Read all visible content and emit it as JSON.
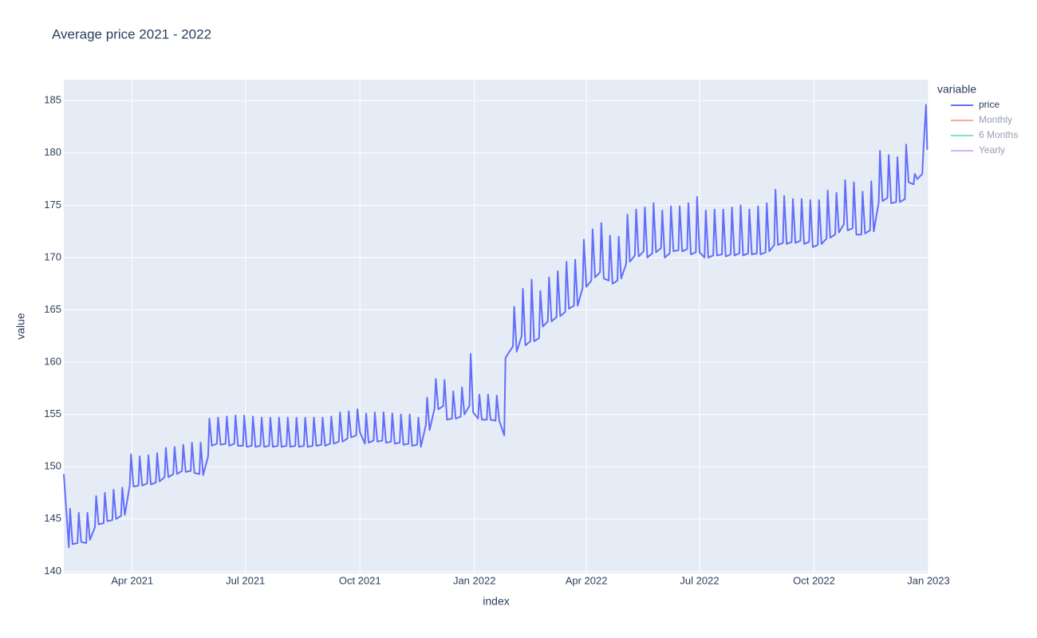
{
  "chart_data": {
    "type": "line",
    "title": "Average price 2021 - 2022",
    "x_label": "index",
    "y_label": "value",
    "legend_title": "variable",
    "grid": true,
    "legend_position": "right",
    "xlim": [
      "2021-02-05",
      "2023-01-01"
    ],
    "xticks": [
      {
        "value": "2021-04-01",
        "label": "Apr 2021"
      },
      {
        "value": "2021-07-01",
        "label": "Jul 2021"
      },
      {
        "value": "2021-10-01",
        "label": "Oct 2021"
      },
      {
        "value": "2022-01-01",
        "label": "Jan 2022"
      },
      {
        "value": "2022-04-01",
        "label": "Apr 2022"
      },
      {
        "value": "2022-07-01",
        "label": "Jul 2022"
      },
      {
        "value": "2022-10-01",
        "label": "Oct 2022"
      },
      {
        "value": "2023-01-01",
        "label": "Jan 2023"
      }
    ],
    "ylim": [
      139.8,
      187
    ],
    "yticks": [
      140,
      145,
      150,
      155,
      160,
      165,
      170,
      175,
      180,
      185
    ],
    "x": [
      "2021-02-05",
      "2021-02-09",
      "2021-02-10",
      "2021-02-12",
      "2021-02-16",
      "2021-02-17",
      "2021-02-19",
      "2021-02-23",
      "2021-02-24",
      "2021-02-26",
      "2021-03-02",
      "2021-03-03",
      "2021-03-05",
      "2021-03-09",
      "2021-03-10",
      "2021-03-12",
      "2021-03-16",
      "2021-03-17",
      "2021-03-19",
      "2021-03-23",
      "2021-03-24",
      "2021-03-26",
      "2021-03-30",
      "2021-03-31",
      "2021-04-02",
      "2021-04-06",
      "2021-04-07",
      "2021-04-09",
      "2021-04-13",
      "2021-04-14",
      "2021-04-16",
      "2021-04-20",
      "2021-04-21",
      "2021-04-23",
      "2021-04-27",
      "2021-04-28",
      "2021-04-30",
      "2021-05-04",
      "2021-05-05",
      "2021-05-07",
      "2021-05-11",
      "2021-05-12",
      "2021-05-14",
      "2021-05-18",
      "2021-05-19",
      "2021-05-21",
      "2021-05-25",
      "2021-05-26",
      "2021-05-28",
      "2021-06-01",
      "2021-06-02",
      "2021-06-04",
      "2021-06-08",
      "2021-06-09",
      "2021-06-11",
      "2021-06-15",
      "2021-06-16",
      "2021-06-18",
      "2021-06-22",
      "2021-06-23",
      "2021-06-25",
      "2021-06-29",
      "2021-06-30",
      "2021-07-02",
      "2021-07-06",
      "2021-07-07",
      "2021-07-09",
      "2021-07-13",
      "2021-07-14",
      "2021-07-16",
      "2021-07-20",
      "2021-07-21",
      "2021-07-23",
      "2021-07-27",
      "2021-07-28",
      "2021-07-30",
      "2021-08-03",
      "2021-08-04",
      "2021-08-06",
      "2021-08-10",
      "2021-08-11",
      "2021-08-13",
      "2021-08-17",
      "2021-08-18",
      "2021-08-20",
      "2021-08-24",
      "2021-08-25",
      "2021-08-27",
      "2021-08-31",
      "2021-09-01",
      "2021-09-03",
      "2021-09-07",
      "2021-09-08",
      "2021-09-10",
      "2021-09-14",
      "2021-09-15",
      "2021-09-17",
      "2021-09-21",
      "2021-09-22",
      "2021-09-24",
      "2021-09-28",
      "2021-09-29",
      "2021-10-01",
      "2021-10-05",
      "2021-10-06",
      "2021-10-08",
      "2021-10-12",
      "2021-10-13",
      "2021-10-15",
      "2021-10-19",
      "2021-10-20",
      "2021-10-22",
      "2021-10-26",
      "2021-10-27",
      "2021-10-29",
      "2021-11-02",
      "2021-11-03",
      "2021-11-05",
      "2021-11-09",
      "2021-11-10",
      "2021-11-12",
      "2021-11-16",
      "2021-11-17",
      "2021-11-19",
      "2021-11-23",
      "2021-11-24",
      "2021-11-26",
      "2021-11-30",
      "2021-12-01",
      "2021-12-03",
      "2021-12-07",
      "2021-12-08",
      "2021-12-10",
      "2021-12-14",
      "2021-12-15",
      "2021-12-17",
      "2021-12-21",
      "2021-12-22",
      "2021-12-24",
      "2021-12-28",
      "2021-12-29",
      "2021-12-31",
      "2022-01-04",
      "2022-01-05",
      "2022-01-07",
      "2022-01-11",
      "2022-01-12",
      "2022-01-14",
      "2022-01-18",
      "2022-01-19",
      "2022-01-21",
      "2022-01-25",
      "2022-01-26",
      "2022-01-28",
      "2022-02-01",
      "2022-02-02",
      "2022-02-04",
      "2022-02-08",
      "2022-02-09",
      "2022-02-11",
      "2022-02-15",
      "2022-02-16",
      "2022-02-18",
      "2022-02-22",
      "2022-02-23",
      "2022-02-25",
      "2022-03-01",
      "2022-03-02",
      "2022-03-04",
      "2022-03-08",
      "2022-03-09",
      "2022-03-11",
      "2022-03-15",
      "2022-03-16",
      "2022-03-18",
      "2022-03-22",
      "2022-03-23",
      "2022-03-25",
      "2022-03-29",
      "2022-03-30",
      "2022-04-01",
      "2022-04-05",
      "2022-04-06",
      "2022-04-08",
      "2022-04-12",
      "2022-04-13",
      "2022-04-15",
      "2022-04-19",
      "2022-04-20",
      "2022-04-22",
      "2022-04-26",
      "2022-04-27",
      "2022-04-29",
      "2022-05-03",
      "2022-05-04",
      "2022-05-06",
      "2022-05-10",
      "2022-05-11",
      "2022-05-13",
      "2022-05-17",
      "2022-05-18",
      "2022-05-20",
      "2022-05-24",
      "2022-05-25",
      "2022-05-27",
      "2022-05-31",
      "2022-06-01",
      "2022-06-03",
      "2022-06-07",
      "2022-06-08",
      "2022-06-10",
      "2022-06-14",
      "2022-06-15",
      "2022-06-17",
      "2022-06-21",
      "2022-06-22",
      "2022-06-24",
      "2022-06-28",
      "2022-06-29",
      "2022-07-01",
      "2022-07-05",
      "2022-07-06",
      "2022-07-08",
      "2022-07-12",
      "2022-07-13",
      "2022-07-15",
      "2022-07-19",
      "2022-07-20",
      "2022-07-22",
      "2022-07-26",
      "2022-07-27",
      "2022-07-29",
      "2022-08-02",
      "2022-08-03",
      "2022-08-05",
      "2022-08-09",
      "2022-08-10",
      "2022-08-12",
      "2022-08-16",
      "2022-08-17",
      "2022-08-19",
      "2022-08-23",
      "2022-08-24",
      "2022-08-26",
      "2022-08-30",
      "2022-08-31",
      "2022-09-02",
      "2022-09-06",
      "2022-09-07",
      "2022-09-09",
      "2022-09-13",
      "2022-09-14",
      "2022-09-16",
      "2022-09-20",
      "2022-09-21",
      "2022-09-23",
      "2022-09-27",
      "2022-09-28",
      "2022-09-30",
      "2022-10-04",
      "2022-10-05",
      "2022-10-07",
      "2022-10-11",
      "2022-10-12",
      "2022-10-14",
      "2022-10-18",
      "2022-10-19",
      "2022-10-21",
      "2022-10-25",
      "2022-10-26",
      "2022-10-28",
      "2022-11-01",
      "2022-11-02",
      "2022-11-04",
      "2022-11-08",
      "2022-11-09",
      "2022-11-11",
      "2022-11-15",
      "2022-11-16",
      "2022-11-18",
      "2022-11-22",
      "2022-11-23",
      "2022-11-25",
      "2022-11-29",
      "2022-11-30",
      "2022-12-02",
      "2022-12-06",
      "2022-12-07",
      "2022-12-09",
      "2022-12-13",
      "2022-12-14",
      "2022-12-16",
      "2022-12-20",
      "2022-12-21",
      "2022-12-23",
      "2022-12-27",
      "2022-12-28",
      "2022-12-30",
      "2022-12-31"
    ],
    "series": [
      {
        "name": "price",
        "color": "#636efa",
        "values": [
          149.3,
          142.3,
          146.0,
          142.6,
          142.7,
          145.6,
          142.8,
          142.7,
          145.6,
          143.0,
          144.2,
          147.2,
          144.5,
          144.6,
          147.5,
          144.8,
          144.9,
          147.8,
          145.0,
          145.3,
          148.0,
          145.4,
          148.2,
          151.2,
          148.1,
          148.2,
          151.0,
          148.2,
          148.4,
          151.1,
          148.3,
          148.5,
          151.3,
          148.6,
          149.0,
          151.8,
          149.0,
          149.3,
          151.9,
          149.3,
          149.6,
          152.1,
          149.5,
          149.6,
          152.3,
          149.4,
          149.3,
          152.3,
          149.2,
          151.0,
          154.6,
          152.0,
          152.2,
          154.7,
          152.1,
          152.2,
          154.8,
          152.0,
          152.2,
          154.9,
          152.0,
          152.0,
          154.9,
          151.9,
          152.0,
          154.8,
          151.9,
          152.0,
          154.7,
          151.9,
          152.0,
          154.7,
          151.9,
          152.0,
          154.7,
          151.9,
          152.0,
          154.7,
          151.9,
          152.0,
          154.7,
          151.9,
          152.0,
          154.7,
          151.9,
          152.0,
          154.7,
          152.0,
          152.1,
          154.7,
          152.0,
          152.2,
          154.8,
          152.2,
          152.4,
          155.2,
          152.4,
          152.7,
          155.3,
          152.8,
          153.0,
          155.5,
          153.3,
          152.2,
          155.1,
          152.3,
          152.5,
          155.2,
          152.4,
          152.5,
          155.2,
          152.3,
          152.4,
          155.1,
          152.2,
          152.3,
          155.0,
          152.1,
          152.2,
          155.0,
          152.0,
          152.1,
          154.7,
          151.9,
          154.0,
          156.6,
          153.5,
          155.6,
          158.4,
          155.5,
          155.8,
          158.3,
          154.5,
          154.6,
          157.2,
          154.6,
          154.8,
          157.6,
          155.0,
          155.8,
          160.8,
          155.2,
          154.6,
          156.9,
          154.5,
          154.5,
          156.9,
          154.5,
          154.4,
          156.8,
          154.4,
          153.0,
          160.4,
          160.8,
          161.5,
          165.3,
          161.0,
          162.5,
          167.0,
          161.6,
          162.0,
          167.9,
          162.0,
          162.3,
          166.8,
          163.4,
          163.9,
          168.1,
          163.9,
          164.3,
          168.7,
          164.4,
          164.8,
          169.6,
          165.1,
          165.4,
          169.8,
          165.4,
          167.1,
          171.7,
          167.2,
          167.8,
          172.7,
          168.1,
          168.6,
          173.3,
          168.0,
          167.8,
          172.1,
          167.5,
          167.8,
          172.0,
          168.0,
          169.4,
          174.1,
          169.6,
          170.2,
          174.6,
          170.1,
          170.6,
          174.8,
          170.0,
          170.4,
          175.2,
          170.5,
          170.9,
          174.5,
          170.0,
          170.4,
          174.9,
          170.6,
          170.7,
          174.9,
          170.6,
          170.8,
          175.2,
          170.3,
          170.5,
          175.8,
          170.5,
          170.0,
          174.5,
          170.0,
          170.2,
          174.6,
          170.2,
          170.3,
          174.6,
          170.1,
          170.3,
          174.8,
          170.2,
          170.4,
          175.0,
          170.2,
          170.4,
          174.6,
          170.3,
          170.4,
          174.9,
          170.3,
          170.5,
          175.2,
          170.6,
          171.2,
          176.5,
          171.2,
          171.4,
          175.9,
          171.3,
          171.5,
          175.6,
          171.4,
          171.6,
          175.6,
          171.3,
          171.5,
          175.5,
          171.0,
          171.2,
          175.5,
          171.3,
          171.8,
          176.4,
          171.9,
          172.2,
          176.2,
          172.4,
          173.2,
          177.4,
          172.6,
          172.8,
          177.2,
          172.2,
          172.2,
          176.3,
          172.3,
          172.6,
          177.3,
          172.5,
          175.3,
          180.2,
          175.4,
          175.7,
          179.8,
          175.2,
          175.3,
          179.6,
          175.3,
          175.6,
          180.8,
          177.2,
          177.0,
          178.0,
          177.5,
          178.0,
          180.5,
          184.6,
          180.3
        ]
      }
    ],
    "hidden_series": [
      {
        "name": "Monthly",
        "color": "#EF553B"
      },
      {
        "name": "6 Months",
        "color": "#00cc96"
      },
      {
        "name": "Yearly",
        "color": "#ab63fa"
      }
    ]
  }
}
